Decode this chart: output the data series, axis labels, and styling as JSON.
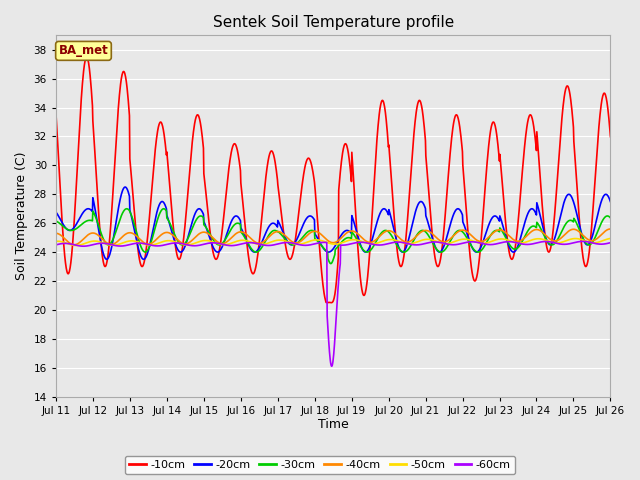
{
  "title": "Sentek Soil Temperature profile",
  "xlabel": "Time",
  "ylabel": "Soil Temperature (C)",
  "ylim": [
    14,
    39
  ],
  "yticks": [
    14,
    16,
    18,
    20,
    22,
    24,
    26,
    28,
    30,
    32,
    34,
    36,
    38
  ],
  "xlim": [
    0,
    15
  ],
  "xtick_labels": [
    "Jul 11",
    "Jul 12",
    "Jul 13",
    "Jul 14",
    "Jul 15",
    "Jul 16",
    "Jul 17",
    "Jul 18",
    "Jul 19",
    "Jul 20",
    "Jul 21",
    "Jul 22",
    "Jul 23",
    "Jul 24",
    "Jul 25",
    "Jul 26"
  ],
  "background_color": "#e8e8e8",
  "plot_bg_color": "#e8e8e8",
  "grid_color": "#ffffff",
  "legend_label": "BA_met",
  "legend_bg": "#ffff99",
  "legend_border": "#8B6914",
  "series_colors": {
    "-10cm": "#ff0000",
    "-20cm": "#0000ff",
    "-30cm": "#00cc00",
    "-40cm": "#ff8800",
    "-50cm": "#ffdd00",
    "-60cm": "#aa00ff"
  },
  "series_linewidths": {
    "-10cm": 1.2,
    "-20cm": 1.2,
    "-30cm": 1.2,
    "-40cm": 1.2,
    "-50cm": 1.2,
    "-60cm": 1.2
  }
}
